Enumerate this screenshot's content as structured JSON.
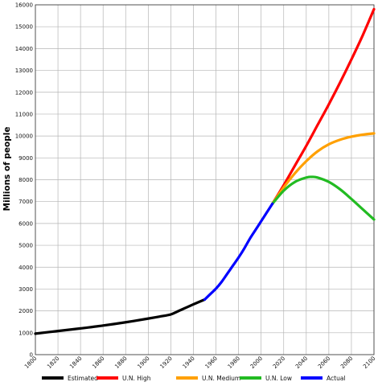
{
  "chart_data": {
    "type": "line",
    "ylabel": "Millions of people",
    "xlabel": "",
    "xlim": [
      1800,
      2100
    ],
    "ylim": [
      0,
      16000
    ],
    "x_ticks": [
      "1800",
      "1820",
      "1840",
      "1860",
      "1880",
      "1900",
      "1920",
      "1940",
      "1960",
      "1980",
      "2000",
      "2020",
      "2040",
      "2060",
      "2080",
      "2100"
    ],
    "y_ticks": [
      "0",
      "1000",
      "2000",
      "3000",
      "4000",
      "5000",
      "6000",
      "7000",
      "8000",
      "9000",
      "10000",
      "11000",
      "12000",
      "13000",
      "14000",
      "15000",
      "16000"
    ],
    "grid": true,
    "legend_position": "bottom",
    "series": [
      {
        "name": "Estimated",
        "color": "#000000",
        "x": [
          1800,
          1820,
          1840,
          1860,
          1880,
          1900,
          1910,
          1920,
          1927,
          1940,
          1950
        ],
        "y": [
          960,
          1080,
          1200,
          1330,
          1480,
          1650,
          1740,
          1840,
          2000,
          2300,
          2520
        ]
      },
      {
        "name": "U.N. High",
        "color": "#ff0000",
        "x": [
          2010,
          2020,
          2030,
          2040,
          2050,
          2060,
          2070,
          2080,
          2090,
          2100
        ],
        "y": [
          6900,
          7750,
          8650,
          9550,
          10500,
          11450,
          12450,
          13500,
          14600,
          15800
        ]
      },
      {
        "name": "U.N. Medium",
        "color": "#ffa000",
        "x": [
          2010,
          2020,
          2030,
          2040,
          2050,
          2060,
          2070,
          2080,
          2090,
          2100
        ],
        "y": [
          6900,
          7650,
          8300,
          8850,
          9300,
          9620,
          9830,
          9970,
          10060,
          10120
        ]
      },
      {
        "name": "U.N. Low",
        "color": "#22bb22",
        "x": [
          2010,
          2020,
          2030,
          2040,
          2045,
          2050,
          2060,
          2070,
          2080,
          2090,
          2100
        ],
        "y": [
          6900,
          7500,
          7900,
          8100,
          8130,
          8100,
          7900,
          7560,
          7120,
          6650,
          6180
        ]
      },
      {
        "name": "Actual",
        "color": "#0000ff",
        "x": [
          1950,
          1955,
          1960,
          1965,
          1970,
          1975,
          1980,
          1985,
          1990,
          1995,
          2000,
          2005,
          2010
        ],
        "y": [
          2520,
          2770,
          3020,
          3330,
          3700,
          4070,
          4440,
          4850,
          5300,
          5700,
          6100,
          6500,
          6900
        ]
      }
    ]
  }
}
